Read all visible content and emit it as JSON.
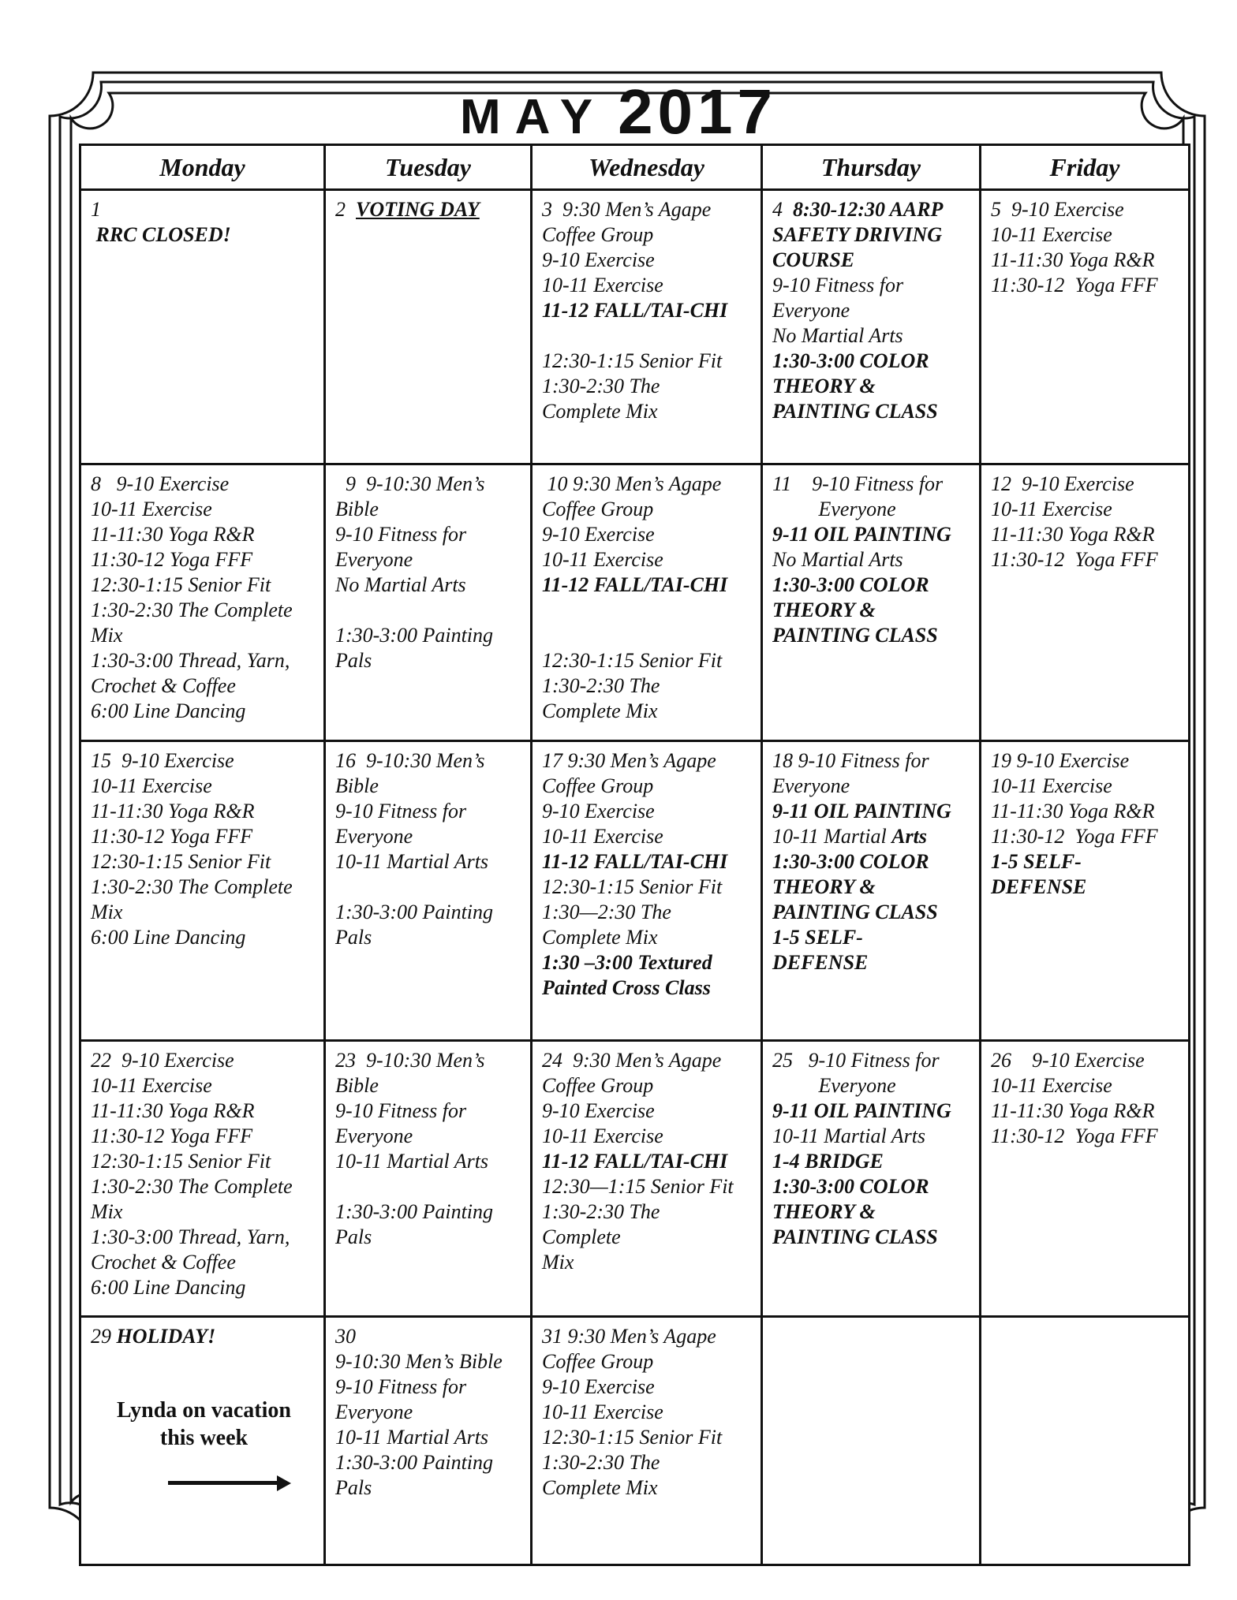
{
  "title": {
    "month": "MAY",
    "year": "2017"
  },
  "days": [
    "Monday",
    "Tuesday",
    "Wednesday",
    "Thursday",
    "Friday"
  ],
  "weeks": [
    [
      [
        {
          "t": "1"
        },
        {
          "t": " RRC CLOSED!",
          "b": true
        }
      ],
      [
        {
          "segs": [
            {
              "t": "2  "
            },
            {
              "t": "VOTING DAY",
              "b": true,
              "u": true
            }
          ]
        }
      ],
      [
        {
          "t": "3  9:30 Men’s Agape"
        },
        {
          "t": "Coffee Group"
        },
        {
          "t": "9-10 Exercise"
        },
        {
          "t": "10-11 Exercise"
        },
        {
          "t": "11-12 FALL/TAI-CHI",
          "b": true
        },
        {
          "t": ""
        },
        {
          "t": "12:30-1:15 Senior Fit"
        },
        {
          "t": "1:30-2:30 The"
        },
        {
          "t": "Complete Mix"
        }
      ],
      [
        {
          "segs": [
            {
              "t": "4  "
            },
            {
              "t": "8:30-12:30 AARP",
              "b": true
            }
          ]
        },
        {
          "t": "SAFETY DRIVING",
          "b": true
        },
        {
          "t": "COURSE",
          "b": true
        },
        {
          "t": "9-10 Fitness for"
        },
        {
          "t": "Everyone"
        },
        {
          "t": "No Martial Arts"
        },
        {
          "t": "1:30-3:00 COLOR",
          "b": true
        },
        {
          "t": "THEORY &",
          "b": true
        },
        {
          "t": "PAINTING CLASS",
          "b": true
        }
      ],
      [
        {
          "t": "5  9-10 Exercise"
        },
        {
          "t": "10-11 Exercise"
        },
        {
          "t": "11-11:30 Yoga R&R"
        },
        {
          "t": "11:30-12  Yoga FFF"
        }
      ]
    ],
    [
      [
        {
          "t": "8   9-10 Exercise"
        },
        {
          "t": "10-11 Exercise"
        },
        {
          "t": "11-11:30 Yoga R&R"
        },
        {
          "t": "11:30-12 Yoga FFF"
        },
        {
          "t": "12:30-1:15 Senior Fit"
        },
        {
          "t": "1:30-2:30 The Complete"
        },
        {
          "t": "Mix"
        },
        {
          "t": "1:30-3:00 Thread, Yarn,"
        },
        {
          "t": "Crochet & Coffee"
        },
        {
          "t": "6:00 Line Dancing"
        }
      ],
      [
        {
          "t": "  9  9-10:30 Men’s"
        },
        {
          "t": "Bible"
        },
        {
          "t": "9-10 Fitness for"
        },
        {
          "t": "Everyone"
        },
        {
          "t": "No Martial Arts"
        },
        {
          "t": ""
        },
        {
          "t": "1:30-3:00 Painting"
        },
        {
          "t": "Pals"
        }
      ],
      [
        {
          "t": " 10 9:30 Men’s Agape"
        },
        {
          "t": "Coffee Group"
        },
        {
          "t": "9-10 Exercise"
        },
        {
          "t": "10-11 Exercise"
        },
        {
          "t": "11-12 FALL/TAI-CHI",
          "b": true
        },
        {
          "t": ""
        },
        {
          "t": ""
        },
        {
          "t": "12:30-1:15 Senior Fit"
        },
        {
          "t": "1:30-2:30 The"
        },
        {
          "t": "Complete Mix"
        }
      ],
      [
        {
          "t": "11    9-10 Fitness for"
        },
        {
          "t": "         Everyone"
        },
        {
          "t": "9-11 OIL PAINTING",
          "b": true
        },
        {
          "t": "No Martial Arts"
        },
        {
          "t": "1:30-3:00 COLOR",
          "b": true
        },
        {
          "t": "THEORY &",
          "b": true
        },
        {
          "t": "PAINTING CLASS",
          "b": true
        }
      ],
      [
        {
          "t": "12  9-10 Exercise"
        },
        {
          "t": "10-11 Exercise"
        },
        {
          "t": "11-11:30 Yoga R&R"
        },
        {
          "t": "11:30-12  Yoga FFF"
        }
      ]
    ],
    [
      [
        {
          "t": "15  9-10 Exercise"
        },
        {
          "t": "10-11 Exercise"
        },
        {
          "t": "11-11:30 Yoga R&R"
        },
        {
          "t": "11:30-12 Yoga FFF"
        },
        {
          "t": "12:30-1:15 Senior Fit"
        },
        {
          "t": "1:30-2:30 The Complete"
        },
        {
          "t": "Mix"
        },
        {
          "t": "6:00 Line Dancing"
        }
      ],
      [
        {
          "t": "16  9-10:30 Men’s"
        },
        {
          "t": "Bible"
        },
        {
          "t": "9-10 Fitness for"
        },
        {
          "t": "Everyone"
        },
        {
          "t": "10-11 Martial Arts"
        },
        {
          "t": ""
        },
        {
          "t": "1:30-3:00 Painting"
        },
        {
          "t": "Pals"
        }
      ],
      [
        {
          "t": "17 9:30 Men’s Agape"
        },
        {
          "t": "Coffee Group"
        },
        {
          "t": "9-10 Exercise"
        },
        {
          "t": "10-11 Exercise"
        },
        {
          "t": "11-12 FALL/TAI-CHI",
          "b": true
        },
        {
          "t": "12:30-1:15 Senior Fit"
        },
        {
          "t": "1:30—2:30 The"
        },
        {
          "t": "Complete Mix"
        },
        {
          "t": "1:30 –3:00 Textured",
          "b": true
        },
        {
          "t": "Painted Cross Class",
          "b": true
        }
      ],
      [
        {
          "t": "18 9-10 Fitness for"
        },
        {
          "t": "Everyone"
        },
        {
          "t": "9-11 OIL PAINTING",
          "b": true
        },
        {
          "segs": [
            {
              "t": "10-11 Martial "
            },
            {
              "t": "Arts",
              "b": true
            }
          ]
        },
        {
          "t": "1:30-3:00 COLOR",
          "b": true
        },
        {
          "t": "THEORY &",
          "b": true
        },
        {
          "t": "PAINTING CLASS",
          "b": true
        },
        {
          "t": "1-5 SELF-",
          "b": true
        },
        {
          "t": "DEFENSE",
          "b": true
        }
      ],
      [
        {
          "t": "19 9-10 Exercise"
        },
        {
          "t": "10-11 Exercise"
        },
        {
          "t": "11-11:30 Yoga R&R"
        },
        {
          "t": "11:30-12  Yoga FFF"
        },
        {
          "t": "1-5 SELF-",
          "b": true
        },
        {
          "t": "DEFENSE",
          "b": true
        }
      ]
    ],
    [
      [
        {
          "t": "22  9-10 Exercise"
        },
        {
          "t": "10-11 Exercise"
        },
        {
          "t": "11-11:30 Yoga R&R"
        },
        {
          "t": "11:30-12 Yoga FFF"
        },
        {
          "t": "12:30-1:15 Senior Fit"
        },
        {
          "t": "1:30-2:30 The Complete"
        },
        {
          "t": "Mix"
        },
        {
          "t": "1:30-3:00 Thread, Yarn,"
        },
        {
          "t": "Crochet & Coffee"
        },
        {
          "t": "6:00 Line Dancing"
        }
      ],
      [
        {
          "t": "23  9-10:30 Men’s"
        },
        {
          "t": "Bible"
        },
        {
          "t": "9-10 Fitness for"
        },
        {
          "t": "Everyone"
        },
        {
          "t": "10-11 Martial Arts"
        },
        {
          "t": ""
        },
        {
          "t": "1:30-3:00 Painting"
        },
        {
          "t": "Pals"
        }
      ],
      [
        {
          "t": "24  9:30 Men’s Agape"
        },
        {
          "t": "Coffee Group"
        },
        {
          "t": "9-10 Exercise"
        },
        {
          "t": "10-11 Exercise"
        },
        {
          "t": "11-12 FALL/TAI-CHI",
          "b": true
        },
        {
          "t": "12:30—1:15 Senior Fit"
        },
        {
          "t": "1:30-2:30 The"
        },
        {
          "t": "Complete"
        },
        {
          "t": "Mix"
        }
      ],
      [
        {
          "t": "25   9-10 Fitness for"
        },
        {
          "t": "         Everyone"
        },
        {
          "t": "9-11 OIL PAINTING",
          "b": true
        },
        {
          "t": "10-11 Martial Arts"
        },
        {
          "t": "1-4 BRIDGE",
          "b": true
        },
        {
          "t": "1:30-3:00 COLOR",
          "b": true
        },
        {
          "t": "THEORY &",
          "b": true
        },
        {
          "t": "PAINTING CLASS",
          "b": true
        }
      ],
      [
        {
          "t": "26    9-10 Exercise"
        },
        {
          "t": "10-11 Exercise"
        },
        {
          "t": "11-11:30 Yoga R&R"
        },
        {
          "t": "11:30-12  Yoga FFF"
        }
      ]
    ],
    [
      [
        {
          "segs": [
            {
              "t": "29 "
            },
            {
              "t": "HOLIDAY!",
              "b": true
            }
          ]
        }
      ],
      [
        {
          "t": "30"
        },
        {
          "t": "9-10:30 Men’s Bible"
        },
        {
          "t": "9-10 Fitness for"
        },
        {
          "t": "Everyone"
        },
        {
          "t": "10-11 Martial Arts"
        },
        {
          "t": "1:30-3:00 Painting"
        },
        {
          "t": "Pals"
        }
      ],
      [
        {
          "t": "31 9:30 Men’s Agape"
        },
        {
          "t": "Coffee Group"
        },
        {
          "t": "9-10 Exercise"
        },
        {
          "t": "10-11 Exercise"
        },
        {
          "t": "12:30-1:15 Senior Fit"
        },
        {
          "t": "1:30-2:30 The"
        },
        {
          "t": "Complete Mix"
        }
      ],
      [],
      []
    ]
  ],
  "vacation_note": {
    "line1": "Lynda on vacation",
    "line2": "this week",
    "icon": "arrow-right-icon"
  }
}
